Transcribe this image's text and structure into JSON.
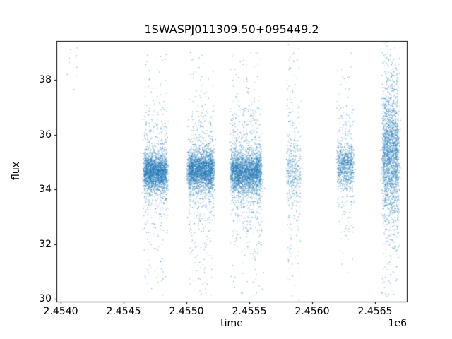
{
  "title": "1SWASPJ011309.50+095449.2",
  "xlabel": "time",
  "ylabel": "flux",
  "offset_label": "1e6",
  "chart_data": {
    "type": "scatter",
    "title": "1SWASPJ011309.50+095449.2",
    "xlabel": "time",
    "ylabel": "flux",
    "x_offset_text": "1e6",
    "x_units_scale": 1000000,
    "xlim": [
      2.453966,
      2.456753
    ],
    "ylim": [
      29.9,
      39.42
    ],
    "xticks": {
      "values": [
        2.454,
        2.4545,
        2.455,
        2.4555,
        2.456,
        2.4565
      ],
      "labels": [
        "2.4540",
        "2.4545",
        "2.4550",
        "2.4555",
        "2.4560",
        "2.4565"
      ]
    },
    "yticks": {
      "values": [
        30,
        32,
        34,
        36,
        38
      ],
      "labels": [
        "30",
        "32",
        "34",
        "36",
        "38"
      ]
    },
    "grid": false,
    "legend": null,
    "marker_color": "#1f77b4",
    "marker_alpha": 0.55,
    "marker_size_px": 1.2,
    "seed": 42,
    "night_jitter": 8e-06,
    "clusters": [
      {
        "x_start": 2.45407,
        "x_end": 2.45412,
        "nights": 2,
        "n": 10,
        "mu": 38.45,
        "core_sigma": 0.3,
        "spread_frac": 0.1,
        "spread_sigma": 0.6,
        "tail_frac": 0.0,
        "tail_lo": 37.8,
        "tail_hi": 39.0
      },
      {
        "x_start": 2.45467,
        "x_end": 2.45484,
        "nights": 13,
        "n": 2600,
        "mu": 34.65,
        "core_sigma": 0.32,
        "spread_frac": 0.2,
        "spread_sigma": 1.1,
        "tail_frac": 0.05,
        "tail_lo": 30.1,
        "tail_hi": 39.0
      },
      {
        "x_start": 2.45502,
        "x_end": 2.45521,
        "nights": 14,
        "n": 2900,
        "mu": 34.7,
        "core_sigma": 0.34,
        "spread_frac": 0.2,
        "spread_sigma": 1.2,
        "tail_frac": 0.05,
        "tail_lo": 30.1,
        "tail_hi": 39.0
      },
      {
        "x_start": 2.45536,
        "x_end": 2.45559,
        "nights": 17,
        "n": 3200,
        "mu": 34.6,
        "core_sigma": 0.36,
        "spread_frac": 0.22,
        "spread_sigma": 1.25,
        "tail_frac": 0.05,
        "tail_lo": 30.1,
        "tail_hi": 39.0
      },
      {
        "x_start": 2.45581,
        "x_end": 2.4559,
        "nights": 6,
        "n": 520,
        "mu": 34.6,
        "core_sigma": 0.5,
        "spread_frac": 0.4,
        "spread_sigma": 2.3,
        "tail_frac": 0.08,
        "tail_lo": 30.1,
        "tail_hi": 39.0
      },
      {
        "x_start": 2.45621,
        "x_end": 2.45632,
        "nights": 8,
        "n": 950,
        "mu": 34.9,
        "core_sigma": 0.4,
        "spread_frac": 0.25,
        "spread_sigma": 1.5,
        "tail_frac": 0.05,
        "tail_lo": 31.0,
        "tail_hi": 39.0
      },
      {
        "x_start": 2.45657,
        "x_end": 2.45668,
        "nights": 8,
        "n": 2300,
        "mu": 35.3,
        "core_sigma": 1.05,
        "spread_frac": 0.3,
        "spread_sigma": 2.0,
        "tail_frac": 0.06,
        "tail_lo": 30.1,
        "tail_hi": 39.0
      }
    ]
  }
}
